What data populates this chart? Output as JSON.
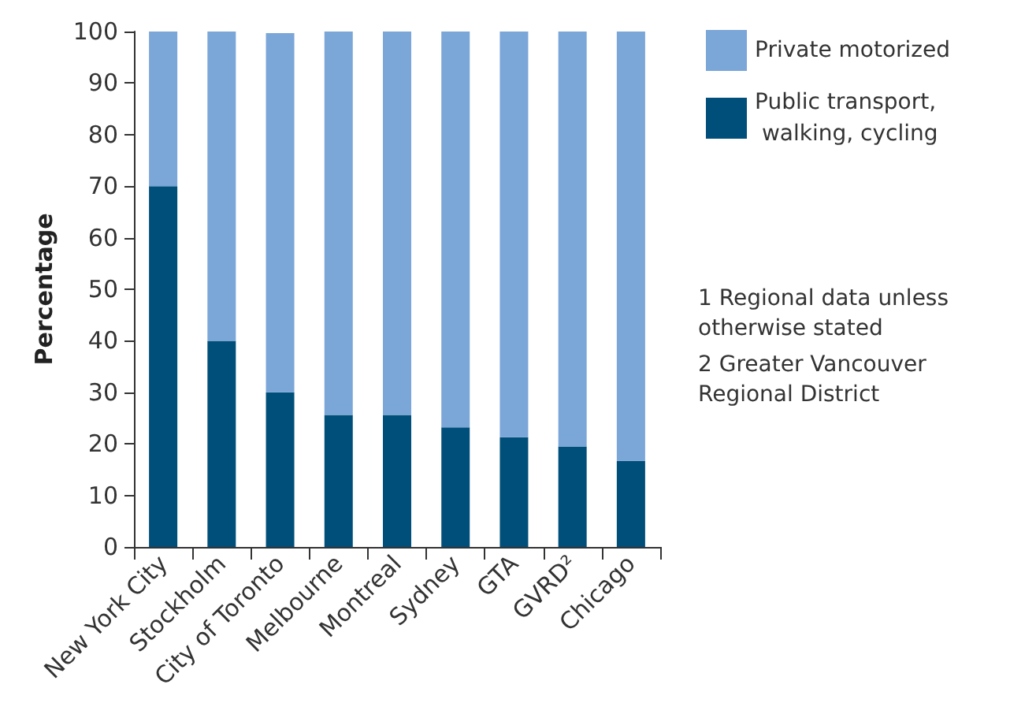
{
  "chart_data": {
    "type": "bar",
    "stacked": true,
    "ylabel": "Percentage",
    "categories": [
      "New York City",
      "Stockholm",
      "City of Toronto",
      "Melbourne",
      "Montreal",
      "Sydney",
      "GTA",
      "GVRD²",
      "Chicago"
    ],
    "series": [
      {
        "name": "Public transport, walking, cycling",
        "color": "#004f7a",
        "values": [
          70,
          40,
          30,
          25.6,
          25.6,
          23.2,
          21.3,
          19.5,
          16.7
        ]
      },
      {
        "name": "Private motorized",
        "color": "#7ba6d8",
        "values": [
          30,
          60,
          69.7,
          74.4,
          74.4,
          76.8,
          78.7,
          80.5,
          83.3
        ]
      }
    ],
    "ylim": [
      0,
      100
    ],
    "yticks": [
      0,
      10,
      20,
      30,
      40,
      50,
      60,
      70,
      80,
      90,
      100
    ],
    "grid": false,
    "legend": "right",
    "annotations": [
      "1 Regional data unless otherwise stated",
      "2 Greater Vancouver Regional District"
    ]
  }
}
